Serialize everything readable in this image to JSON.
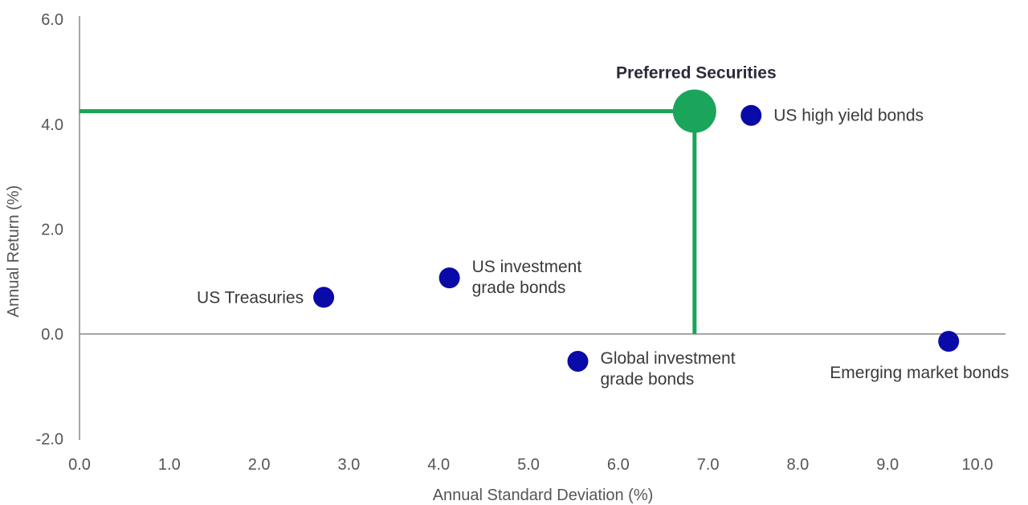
{
  "chart_data": {
    "type": "scatter",
    "title": "",
    "xlabel": "Annual Standard Deviation (%)",
    "ylabel": "Annual Return (%)",
    "xlim": [
      0,
      10.4
    ],
    "ylim": [
      -2.0,
      6.0
    ],
    "x_ticks": [
      "0.0",
      "1.0",
      "2.0",
      "3.0",
      "4.0",
      "5.0",
      "6.0",
      "7.0",
      "8.0",
      "9.0",
      "10.0"
    ],
    "y_ticks": [
      "6.0",
      "4.0",
      "2.0",
      "0.0",
      "-2.0"
    ],
    "grid": false,
    "colors": {
      "points": "#0a0aa8",
      "highlight": "#1aa55a",
      "axis": "#888888"
    },
    "highlight": {
      "label": "Preferred Securities",
      "x": 6.85,
      "y": 4.25,
      "reference_lines": true
    },
    "points": [
      {
        "label_lines": [
          "US Treasuries"
        ],
        "x": 2.72,
        "y": 0.7
      },
      {
        "label_lines": [
          "US investment",
          "grade bonds"
        ],
        "x": 4.12,
        "y": 1.07
      },
      {
        "label_lines": [
          "Global investment",
          "grade bonds"
        ],
        "x": 5.55,
        "y": -0.52
      },
      {
        "label_lines": [
          "US high yield bonds"
        ],
        "x": 7.48,
        "y": 4.17
      },
      {
        "label_lines": [
          "Emerging market bonds"
        ],
        "x": 9.68,
        "y": -0.14
      }
    ]
  }
}
